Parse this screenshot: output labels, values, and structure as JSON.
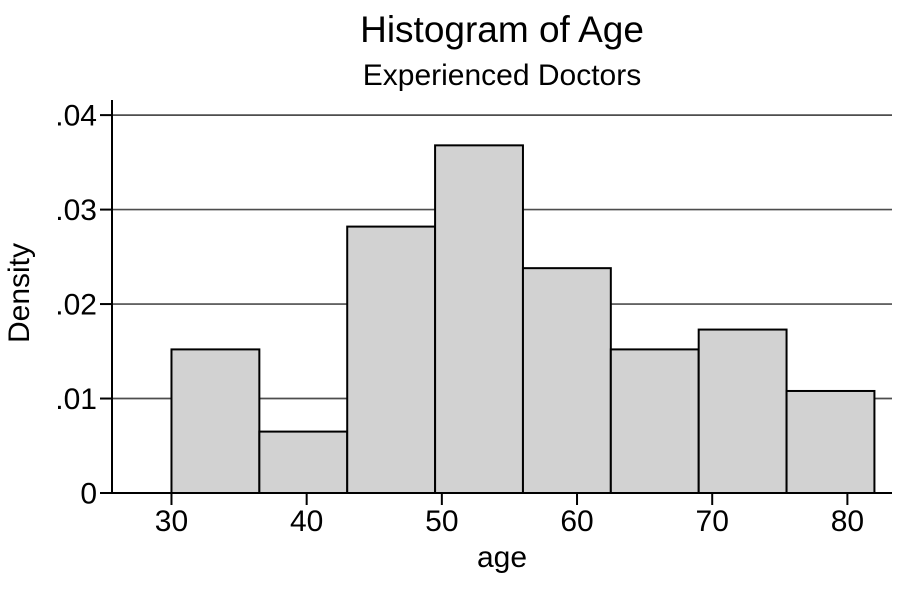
{
  "chart_data": {
    "type": "bar",
    "chart_kind": "histogram",
    "title": "Histogram of Age",
    "subtitle": "Experienced Doctors",
    "xlabel": "age",
    "ylabel": "Density",
    "bin_width": 6.5,
    "bins": [
      {
        "x0": 30,
        "x1": 36.5,
        "density": 0.0152
      },
      {
        "x0": 36.5,
        "x1": 43,
        "density": 0.0065
      },
      {
        "x0": 43,
        "x1": 49.5,
        "density": 0.0282
      },
      {
        "x0": 49.5,
        "x1": 56,
        "density": 0.0368
      },
      {
        "x0": 56,
        "x1": 62.5,
        "density": 0.0238
      },
      {
        "x0": 62.5,
        "x1": 69,
        "density": 0.0152
      },
      {
        "x0": 69,
        "x1": 75.5,
        "density": 0.0173
      },
      {
        "x0": 75.5,
        "x1": 82,
        "density": 0.0108
      }
    ],
    "x_ticks": [
      {
        "value": 30,
        "label": "30"
      },
      {
        "value": 40,
        "label": "40"
      },
      {
        "value": 50,
        "label": "50"
      },
      {
        "value": 60,
        "label": "60"
      },
      {
        "value": 70,
        "label": "70"
      },
      {
        "value": 80,
        "label": "80"
      }
    ],
    "y_ticks": [
      {
        "value": 0,
        "label": "0"
      },
      {
        "value": 0.01,
        "label": ".01"
      },
      {
        "value": 0.02,
        "label": ".02"
      },
      {
        "value": 0.03,
        "label": ".03"
      },
      {
        "value": 0.04,
        "label": ".04"
      }
    ],
    "xlim": [
      25.6,
      83.3
    ],
    "ylim": [
      0,
      0.0416
    ],
    "grid": "horizontal",
    "legend": "none",
    "colors": {
      "background": "#ffffff",
      "bar_fill": "#d2d2d2",
      "bar_border": "#000000",
      "gridline": "#4d4d4d",
      "axis": "#000000",
      "text": "#000000"
    }
  }
}
